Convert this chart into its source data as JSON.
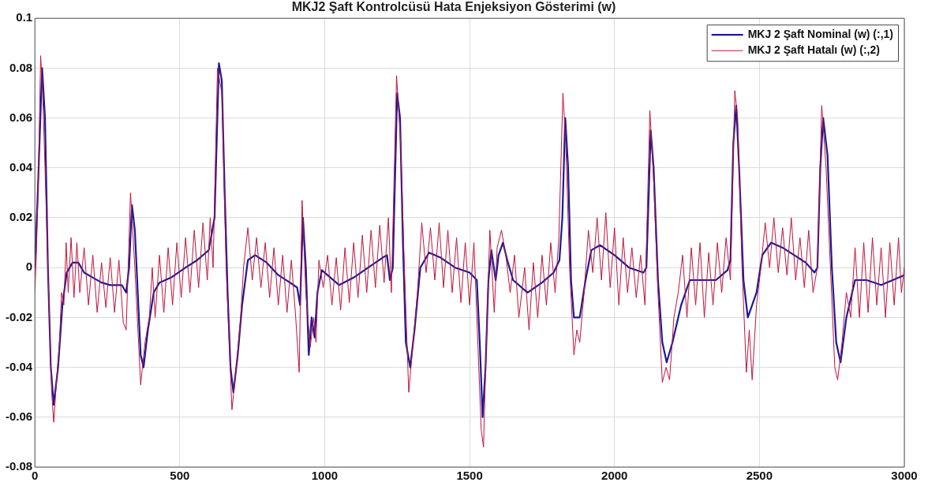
{
  "chart_data": {
    "type": "line",
    "title": "MKJ2 Şaft Kontrolcüsü Hata Enjeksiyon Gösterimi (w)",
    "xlim": [
      0,
      3000
    ],
    "xticks": [
      0,
      500,
      1000,
      1500,
      2000,
      2500,
      3000
    ],
    "ylim": [
      -0.08,
      0.1
    ],
    "yticks": [
      -0.08,
      -0.06,
      -0.04,
      -0.02,
      0,
      0.02,
      0.04,
      0.06,
      0.08,
      0.1
    ],
    "grid": true,
    "legend": "top right",
    "marker": "none",
    "line_style": "solid",
    "series": [
      {
        "name": "MKJ 2 Şaft Nominal (w) (:,1)",
        "color": "#1a1a9a",
        "x": [
          0,
          10,
          25,
          35,
          45,
          55,
          65,
          80,
          95,
          110,
          130,
          150,
          170,
          200,
          230,
          260,
          300,
          315,
          325,
          335,
          345,
          355,
          365,
          375,
          390,
          410,
          430,
          470,
          520,
          560,
          600,
          620,
          635,
          645,
          655,
          665,
          675,
          685,
          700,
          715,
          735,
          760,
          800,
          840,
          880,
          905,
          915,
          925,
          935,
          945,
          955,
          965,
          975,
          990,
          1050,
          1100,
          1150,
          1200,
          1215,
          1225,
          1235,
          1250,
          1260,
          1270,
          1280,
          1295,
          1310,
          1330,
          1360,
          1400,
          1450,
          1500,
          1525,
          1535,
          1545,
          1555,
          1565,
          1575,
          1590,
          1600,
          1615,
          1630,
          1650,
          1700,
          1750,
          1790,
          1810,
          1820,
          1830,
          1840,
          1850,
          1860,
          1880,
          1900,
          1920,
          1950,
          2000,
          2050,
          2100,
          2110,
          2125,
          2135,
          2150,
          2165,
          2180,
          2200,
          2230,
          2260,
          2300,
          2350,
          2390,
          2400,
          2410,
          2420,
          2430,
          2445,
          2460,
          2475,
          2490,
          2510,
          2540,
          2580,
          2620,
          2660,
          2690,
          2700,
          2710,
          2720,
          2735,
          2750,
          2765,
          2780,
          2800,
          2830,
          2870,
          2920,
          2960,
          3000
        ],
        "values": [
          0,
          0.03,
          0.08,
          0.06,
          0,
          -0.04,
          -0.055,
          -0.04,
          -0.015,
          -0.002,
          0.002,
          0.002,
          -0.002,
          -0.004,
          -0.006,
          -0.007,
          -0.007,
          -0.01,
          0,
          0.025,
          0.015,
          -0.01,
          -0.035,
          -0.04,
          -0.025,
          -0.01,
          -0.006,
          -0.004,
          0,
          0.003,
          0.007,
          0.02,
          0.082,
          0.075,
          0.03,
          -0.01,
          -0.04,
          -0.05,
          -0.035,
          -0.015,
          0.003,
          0.005,
          0.002,
          -0.003,
          -0.006,
          -0.008,
          -0.015,
          0.02,
          0,
          -0.035,
          -0.02,
          -0.028,
          -0.01,
          -0.001,
          -0.007,
          -0.004,
          0,
          0.004,
          0.005,
          -0.005,
          0,
          0.07,
          0.06,
          0.01,
          -0.03,
          -0.04,
          -0.025,
          0,
          0.006,
          0.004,
          0,
          -0.002,
          -0.005,
          -0.03,
          -0.06,
          -0.04,
          -0.005,
          0.007,
          -0.005,
          0.005,
          0.01,
          0.003,
          -0.005,
          -0.01,
          -0.006,
          -0.002,
          0.003,
          0.02,
          0.06,
          0.04,
          -0.005,
          -0.02,
          -0.02,
          -0.005,
          0.007,
          0.009,
          0.005,
          0,
          -0.002,
          0,
          0.055,
          0.04,
          -0.005,
          -0.03,
          -0.038,
          -0.03,
          -0.015,
          -0.005,
          -0.005,
          -0.005,
          -0.001,
          0.003,
          0.05,
          0.065,
          0.04,
          -0.005,
          -0.02,
          -0.015,
          -0.01,
          0.005,
          0.01,
          0.008,
          0.005,
          0.002,
          -0.002,
          0,
          0.04,
          0.06,
          0.045,
          0,
          -0.03,
          -0.038,
          -0.02,
          -0.005,
          -0.005,
          -0.007,
          -0.005,
          -0.003
        ]
      },
      {
        "name": "MKJ 2 Şaft Hatalı (w) (:,2)",
        "color": "#c0143c",
        "x": [
          0,
          5,
          12,
          20,
          27,
          35,
          45,
          58,
          65,
          75,
          85,
          92,
          100,
          108,
          115,
          125,
          135,
          145,
          155,
          170,
          185,
          200,
          215,
          230,
          245,
          260,
          275,
          290,
          305,
          315,
          330,
          345,
          365,
          380,
          395,
          405,
          415,
          430,
          445,
          460,
          475,
          490,
          505,
          520,
          535,
          550,
          565,
          580,
          595,
          605,
          615,
          630,
          645,
          660,
          680,
          695,
          710,
          720,
          735,
          750,
          765,
          780,
          795,
          810,
          825,
          840,
          855,
          870,
          885,
          900,
          912,
          922,
          935,
          950,
          962,
          970,
          980,
          995,
          1010,
          1025,
          1040,
          1055,
          1070,
          1085,
          1100,
          1115,
          1130,
          1145,
          1160,
          1175,
          1190,
          1205,
          1220,
          1230,
          1248,
          1262,
          1275,
          1290,
          1305,
          1320,
          1335,
          1350,
          1365,
          1380,
          1395,
          1410,
          1425,
          1440,
          1455,
          1470,
          1485,
          1500,
          1515,
          1525,
          1540,
          1548,
          1560,
          1570,
          1585,
          1595,
          1610,
          1625,
          1640,
          1655,
          1670,
          1690,
          1705,
          1720,
          1735,
          1750,
          1765,
          1780,
          1795,
          1808,
          1822,
          1832,
          1845,
          1860,
          1870,
          1880,
          1895,
          1910,
          1925,
          1940,
          1955,
          1970,
          1985,
          2000,
          2015,
          2030,
          2045,
          2060,
          2075,
          2090,
          2105,
          2122,
          2135,
          2150,
          2165,
          2178,
          2190,
          2205,
          2220,
          2235,
          2250,
          2265,
          2280,
          2295,
          2310,
          2325,
          2340,
          2355,
          2370,
          2385,
          2400,
          2415,
          2425,
          2440,
          2455,
          2465,
          2475,
          2490,
          2505,
          2520,
          2535,
          2550,
          2565,
          2580,
          2595,
          2610,
          2625,
          2640,
          2655,
          2670,
          2685,
          2700,
          2715,
          2730,
          2745,
          2760,
          2770,
          2785,
          2800,
          2815,
          2830,
          2845,
          2860,
          2875,
          2890,
          2905,
          2920,
          2935,
          2950,
          2965,
          2980,
          2990,
          3000
        ],
        "values": [
          -0.01,
          0.005,
          0.035,
          0.085,
          0.07,
          0.04,
          0,
          -0.05,
          -0.062,
          -0.045,
          -0.03,
          -0.01,
          -0.015,
          0.01,
          -0.01,
          0.012,
          -0.012,
          0.01,
          -0.01,
          0.008,
          -0.015,
          0.005,
          -0.018,
          0.002,
          -0.016,
          0.004,
          -0.018,
          0.003,
          -0.022,
          -0.025,
          0.03,
          0,
          -0.047,
          -0.03,
          -0.02,
          0,
          -0.02,
          0.005,
          -0.018,
          0.008,
          -0.015,
          0.01,
          -0.012,
          0.012,
          -0.01,
          0.015,
          -0.008,
          0.018,
          -0.005,
          0.02,
          0,
          0.08,
          0.07,
          0,
          -0.057,
          -0.04,
          -0.02,
          0,
          0.016,
          -0.005,
          0.012,
          -0.008,
          0.01,
          -0.012,
          0.008,
          -0.015,
          0.005,
          -0.018,
          0.003,
          -0.02,
          -0.042,
          0.027,
          -0.01,
          -0.032,
          -0.02,
          -0.03,
          0.003,
          -0.008,
          0.005,
          -0.015,
          0.004,
          -0.017,
          0.008,
          -0.014,
          0.01,
          -0.012,
          0.013,
          -0.01,
          0.015,
          -0.008,
          0.017,
          -0.006,
          0.02,
          -0.01,
          0.077,
          0.05,
          0,
          -0.05,
          -0.03,
          -0.01,
          0.018,
          -0.002,
          0.016,
          -0.005,
          0.018,
          -0.008,
          0.015,
          -0.01,
          0.012,
          -0.014,
          0.01,
          -0.015,
          0.01,
          -0.02,
          -0.065,
          -0.072,
          -0.02,
          0.015,
          -0.018,
          0.008,
          0.015,
          0.005,
          -0.01,
          0.005,
          -0.02,
          0,
          -0.025,
          0.002,
          -0.02,
          0.005,
          -0.015,
          0.01,
          -0.01,
          0.012,
          0.07,
          0.05,
          0,
          -0.035,
          -0.025,
          -0.03,
          -0.01,
          0.015,
          -0.002,
          0.02,
          -0.005,
          0.022,
          -0.008,
          0.016,
          -0.015,
          0.012,
          -0.01,
          0.008,
          -0.012,
          0.005,
          -0.015,
          0.063,
          0.035,
          -0.01,
          -0.046,
          -0.04,
          -0.045,
          -0.02,
          -0.01,
          0.005,
          -0.02,
          0.008,
          -0.015,
          0.01,
          -0.02,
          0.006,
          -0.015,
          0.01,
          -0.01,
          0.012,
          -0.005,
          0.071,
          0.06,
          0,
          -0.042,
          -0.025,
          -0.045,
          -0.015,
          0,
          0.018,
          0,
          0.02,
          -0.002,
          0.016,
          -0.003,
          0.02,
          -0.005,
          0.012,
          -0.008,
          0.015,
          -0.01,
          0,
          0.065,
          0.04,
          0,
          -0.04,
          -0.045,
          -0.03,
          -0.01,
          -0.02,
          0.008,
          -0.02,
          0.01,
          -0.018,
          0.012,
          -0.015,
          0.008,
          -0.02,
          0.01,
          -0.015,
          0.012,
          -0.01,
          0
        ]
      }
    ]
  }
}
